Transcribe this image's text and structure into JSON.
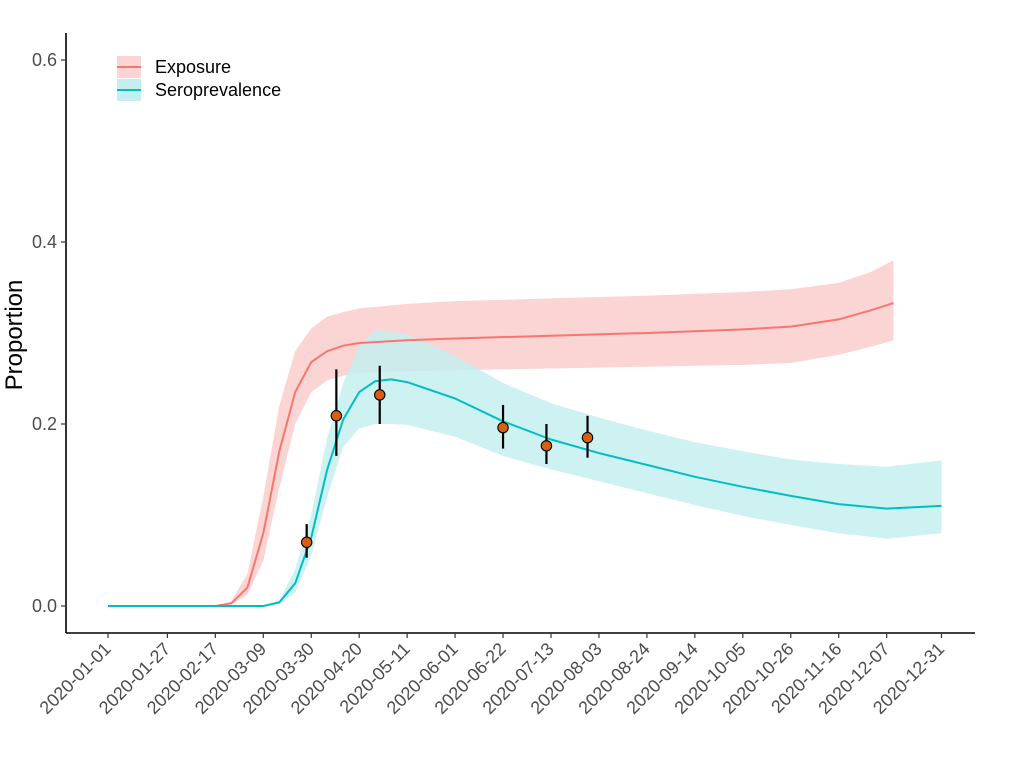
{
  "chart_data": {
    "type": "line",
    "title": "",
    "xlabel": "",
    "ylabel": "Proportion",
    "ylim": [
      -0.028,
      0.63
    ],
    "grid": false,
    "legend_position": "top-left",
    "y_ticks": [
      {
        "value": 0.0,
        "label": "0.0"
      },
      {
        "value": 0.2,
        "label": "0.2"
      },
      {
        "value": 0.4,
        "label": "0.4"
      },
      {
        "value": 0.6,
        "label": "0.6"
      }
    ],
    "x_ticks": [
      "2020-01-01",
      "2020-01-27",
      "2020-02-17",
      "2020-03-09",
      "2020-03-30",
      "2020-04-20",
      "2020-05-11",
      "2020-06-01",
      "2020-06-22",
      "2020-07-13",
      "2020-08-03",
      "2020-08-24",
      "2020-09-14",
      "2020-10-05",
      "2020-10-26",
      "2020-11-16",
      "2020-12-07",
      "2020-12-31"
    ],
    "series": [
      {
        "name": "Exposure",
        "color": "#F8766D",
        "band_color": "#FBD4D4",
        "points": [
          {
            "x": "2020-01-01",
            "y": 0,
            "lo": 0,
            "hi": 0
          },
          {
            "x": "2020-02-17",
            "y": 0,
            "lo": 0,
            "hi": 0
          },
          {
            "x": "2020-02-24",
            "y": 0.003,
            "lo": 0.002,
            "hi": 0.005
          },
          {
            "x": "2020-03-02",
            "y": 0.02,
            "lo": 0.012,
            "hi": 0.035
          },
          {
            "x": "2020-03-09",
            "y": 0.08,
            "lo": 0.05,
            "hi": 0.12
          },
          {
            "x": "2020-03-16",
            "y": 0.17,
            "lo": 0.13,
            "hi": 0.22
          },
          {
            "x": "2020-03-23",
            "y": 0.235,
            "lo": 0.2,
            "hi": 0.28
          },
          {
            "x": "2020-03-30",
            "y": 0.268,
            "lo": 0.235,
            "hi": 0.305
          },
          {
            "x": "2020-04-06",
            "y": 0.28,
            "lo": 0.248,
            "hi": 0.318
          },
          {
            "x": "2020-04-13",
            "y": 0.286,
            "lo": 0.253,
            "hi": 0.323
          },
          {
            "x": "2020-04-20",
            "y": 0.289,
            "lo": 0.256,
            "hi": 0.327
          },
          {
            "x": "2020-05-11",
            "y": 0.292,
            "lo": 0.258,
            "hi": 0.332
          },
          {
            "x": "2020-06-01",
            "y": 0.294,
            "lo": 0.259,
            "hi": 0.335
          },
          {
            "x": "2020-07-13",
            "y": 0.297,
            "lo": 0.261,
            "hi": 0.338
          },
          {
            "x": "2020-08-24",
            "y": 0.3,
            "lo": 0.263,
            "hi": 0.341
          },
          {
            "x": "2020-09-14",
            "y": 0.302,
            "lo": 0.264,
            "hi": 0.343
          },
          {
            "x": "2020-10-05",
            "y": 0.304,
            "lo": 0.265,
            "hi": 0.345
          },
          {
            "x": "2020-10-26",
            "y": 0.307,
            "lo": 0.267,
            "hi": 0.348
          },
          {
            "x": "2020-11-16",
            "y": 0.315,
            "lo": 0.276,
            "hi": 0.355
          },
          {
            "x": "2020-11-30",
            "y": 0.325,
            "lo": 0.285,
            "hi": 0.367
          },
          {
            "x": "2020-12-10",
            "y": 0.333,
            "lo": 0.292,
            "hi": 0.38
          }
        ]
      },
      {
        "name": "Seroprevalence",
        "color": "#00BFC4",
        "band_color": "#C6EEF0",
        "points": [
          {
            "x": "2020-01-01",
            "y": 0,
            "lo": 0,
            "hi": 0
          },
          {
            "x": "2020-03-09",
            "y": 0,
            "lo": 0,
            "hi": 0
          },
          {
            "x": "2020-03-16",
            "y": 0.004,
            "lo": 0.002,
            "hi": 0.006
          },
          {
            "x": "2020-03-23",
            "y": 0.025,
            "lo": 0.015,
            "hi": 0.04
          },
          {
            "x": "2020-03-30",
            "y": 0.075,
            "lo": 0.055,
            "hi": 0.1
          },
          {
            "x": "2020-04-06",
            "y": 0.15,
            "lo": 0.12,
            "hi": 0.185
          },
          {
            "x": "2020-04-13",
            "y": 0.205,
            "lo": 0.175,
            "hi": 0.245
          },
          {
            "x": "2020-04-20",
            "y": 0.235,
            "lo": 0.195,
            "hi": 0.285
          },
          {
            "x": "2020-04-27",
            "y": 0.247,
            "lo": 0.2,
            "hi": 0.303
          },
          {
            "x": "2020-05-04",
            "y": 0.249,
            "lo": 0.2,
            "hi": 0.302
          },
          {
            "x": "2020-05-11",
            "y": 0.246,
            "lo": 0.199,
            "hi": 0.298
          },
          {
            "x": "2020-06-01",
            "y": 0.228,
            "lo": 0.186,
            "hi": 0.275
          },
          {
            "x": "2020-06-22",
            "y": 0.203,
            "lo": 0.165,
            "hi": 0.245
          },
          {
            "x": "2020-07-13",
            "y": 0.183,
            "lo": 0.15,
            "hi": 0.223
          },
          {
            "x": "2020-08-03",
            "y": 0.168,
            "lo": 0.137,
            "hi": 0.207
          },
          {
            "x": "2020-08-24",
            "y": 0.155,
            "lo": 0.124,
            "hi": 0.193
          },
          {
            "x": "2020-09-14",
            "y": 0.142,
            "lo": 0.111,
            "hi": 0.18
          },
          {
            "x": "2020-10-05",
            "y": 0.131,
            "lo": 0.099,
            "hi": 0.17
          },
          {
            "x": "2020-10-26",
            "y": 0.121,
            "lo": 0.089,
            "hi": 0.161
          },
          {
            "x": "2020-11-16",
            "y": 0.112,
            "lo": 0.08,
            "hi": 0.156
          },
          {
            "x": "2020-12-07",
            "y": 0.107,
            "lo": 0.074,
            "hi": 0.153
          },
          {
            "x": "2020-12-31",
            "y": 0.11,
            "lo": 0.08,
            "hi": 0.16
          }
        ]
      }
    ],
    "observations": [
      {
        "x": "2020-03-28",
        "y": 0.07,
        "lo": 0.053,
        "hi": 0.09
      },
      {
        "x": "2020-04-10",
        "y": 0.209,
        "lo": 0.165,
        "hi": 0.26
      },
      {
        "x": "2020-04-29",
        "y": 0.232,
        "lo": 0.2,
        "hi": 0.264
      },
      {
        "x": "2020-06-22",
        "y": 0.196,
        "lo": 0.173,
        "hi": 0.221
      },
      {
        "x": "2020-07-11",
        "y": 0.176,
        "lo": 0.156,
        "hi": 0.2
      },
      {
        "x": "2020-07-29",
        "y": 0.185,
        "lo": 0.163,
        "hi": 0.209
      }
    ],
    "observation_color": "#D95F0E"
  }
}
